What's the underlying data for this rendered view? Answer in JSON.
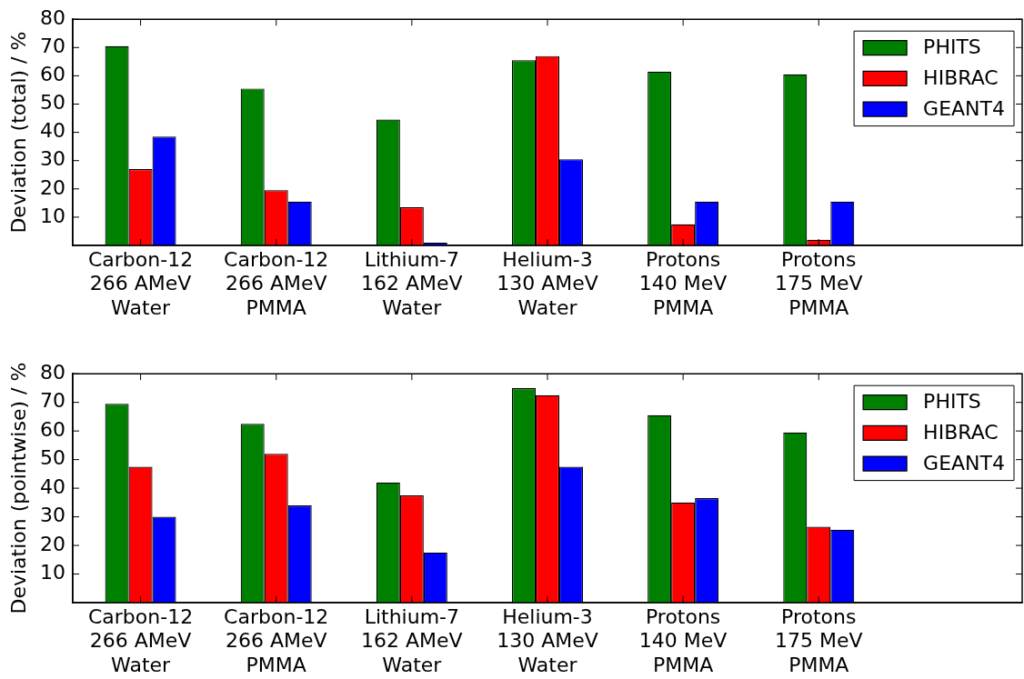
{
  "chart_data": [
    {
      "type": "bar",
      "ylabel": "Deviation (total) / %",
      "categories": [
        "Carbon-12\n266 AMeV\nWater",
        "Carbon-12\n266 AMeV\nPMMA",
        "Lithium-7\n162 AMeV\nWater",
        "Helium-3\n130 AMeV\nWater",
        "Protons\n140 MeV\nPMMA",
        "Protons\n175 MeV\nPMMA",
        null
      ],
      "series": [
        {
          "name": "PHITS",
          "color": "#008000",
          "values": [
            70.5,
            55.5,
            44.5,
            65.5,
            61.5,
            60.5,
            null
          ]
        },
        {
          "name": "HIBRAC",
          "color": "#ff0000",
          "values": [
            27,
            19.5,
            13.5,
            67,
            7.5,
            2,
            null
          ]
        },
        {
          "name": "GEANT4",
          "color": "#0000ff",
          "values": [
            38.5,
            15.5,
            1,
            30.5,
            15.5,
            15.5,
            null
          ]
        }
      ],
      "ylim": [
        0,
        80
      ],
      "yticks": [
        10,
        20,
        30,
        40,
        50,
        60,
        70,
        80
      ],
      "legend": "top right"
    },
    {
      "type": "bar",
      "ylabel": "Deviation (pointwise) / %",
      "categories": [
        "Carbon-12\n266 AMeV\nWater",
        "Carbon-12\n266 AMeV\nPMMA",
        "Lithium-7\n162 AMeV\nWater",
        "Helium-3\n130 AMeV\nWater",
        "Protons\n140 MeV\nPMMA",
        "Protons\n175 MeV\nPMMA",
        null
      ],
      "series": [
        {
          "name": "PHITS",
          "color": "#008000",
          "values": [
            69.5,
            62.5,
            42,
            75,
            65.5,
            59.5,
            null
          ]
        },
        {
          "name": "HIBRAC",
          "color": "#ff0000",
          "values": [
            47.5,
            52,
            37.5,
            72.5,
            35,
            26.5,
            null
          ]
        },
        {
          "name": "GEANT4",
          "color": "#0000ff",
          "values": [
            30,
            34,
            17.5,
            47.5,
            36.5,
            25.5,
            null
          ]
        }
      ],
      "ylim": [
        0,
        80
      ],
      "yticks": [
        10,
        20,
        30,
        40,
        50,
        60,
        70,
        80
      ],
      "legend": "top right"
    }
  ]
}
